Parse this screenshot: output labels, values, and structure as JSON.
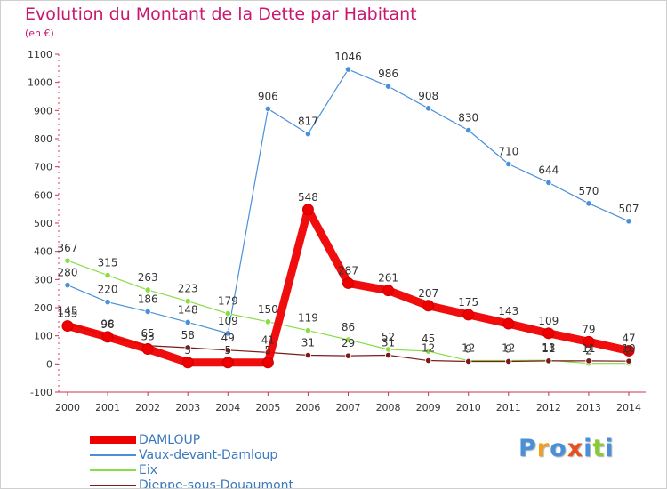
{
  "title": "Evolution du Montant de la Dette par Habitant",
  "unit": "(en €)",
  "logo": "Proxiti",
  "chart_data": {
    "type": "line",
    "title": "Evolution du Montant de la Dette par Habitant",
    "ylabel": "(en €)",
    "x": [
      "2000",
      "2001",
      "2002",
      "2003",
      "2004",
      "2005",
      "2006",
      "2007",
      "2008",
      "2009",
      "2010",
      "2011",
      "2012",
      "2013",
      "2014"
    ],
    "ylim": [
      -100,
      1100
    ],
    "yticks": [
      -100,
      0,
      100,
      200,
      300,
      400,
      500,
      600,
      700,
      800,
      900,
      1000,
      1100
    ],
    "grid": false,
    "legend_position": "bottom-left",
    "series": [
      {
        "name": "DAMLOUP",
        "color": "#ee0000",
        "values": [
          135,
          96,
          53,
          5,
          5,
          5,
          548,
          287,
          261,
          207,
          175,
          143,
          109,
          79,
          47
        ],
        "labels": [
          "135",
          "96",
          "53",
          "5",
          "5",
          "5",
          "548",
          "287",
          "261",
          "207",
          "175",
          "143",
          "109",
          "79",
          "47"
        ]
      },
      {
        "name": "Vaux-devant-Damloup",
        "color": "#4a90d9",
        "values": [
          280,
          220,
          186,
          148,
          109,
          906,
          817,
          1046,
          986,
          908,
          830,
          710,
          644,
          570,
          507
        ],
        "labels": [
          "280",
          "220",
          "186",
          "148",
          "109",
          "906",
          "817",
          "1046",
          "986",
          "908",
          "830",
          "710",
          "644",
          "570",
          "507"
        ]
      },
      {
        "name": "Eix",
        "color": "#88dd44",
        "values": [
          367,
          315,
          263,
          223,
          179,
          150,
          119,
          86,
          52,
          45,
          12,
          12,
          13,
          2,
          2
        ],
        "labels": [
          "367",
          "315",
          "263",
          "223",
          "179",
          "150",
          "119",
          "86",
          "52",
          "45",
          "12",
          "12",
          "13",
          "2",
          "2"
        ]
      },
      {
        "name": "Dieppe-sous-Douaumont",
        "color": "#7a1c1c",
        "values": [
          145,
          98,
          65,
          58,
          49,
          41,
          31,
          29,
          31,
          12,
          9,
          9,
          11,
          11,
          10
        ],
        "labels": [
          "145",
          "98",
          "65",
          "58",
          "49",
          "41",
          "31",
          "29",
          "31",
          "12",
          "9",
          "9",
          "11",
          "11",
          "10"
        ]
      }
    ]
  }
}
